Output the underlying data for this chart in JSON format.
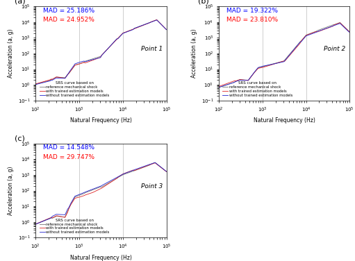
{
  "panels": [
    {
      "label": "(a)",
      "point_label": "Point 1",
      "mad_blue": "MAD = 25.186%",
      "mad_red": "MAD = 24.952%"
    },
    {
      "label": "(b)",
      "point_label": "Point 2",
      "mad_blue": "MAD = 19.322%",
      "mad_red": "MAD = 23.810%"
    },
    {
      "label": "(c)",
      "point_label": "Point 3",
      "mad_blue": "MAD = 14.548%",
      "mad_red": "MAD = 29.747%"
    }
  ],
  "xlabel": "Natural Frequency (Hz)",
  "ylabel": "Acceleration (a, g)",
  "legend_title": "SRS curve based on",
  "legend_entries": [
    "reference mechanical shock",
    "with trained estimation models",
    "without trained estimation models"
  ],
  "line_colors": [
    "#777777",
    "#dd2222",
    "#2222cc"
  ],
  "xlim": [
    100,
    100000
  ],
  "ylim": [
    0.1,
    100000
  ],
  "background_color": "#ffffff",
  "vline_positions": [
    1000,
    10000
  ],
  "vline_color": "#bbbbbb"
}
